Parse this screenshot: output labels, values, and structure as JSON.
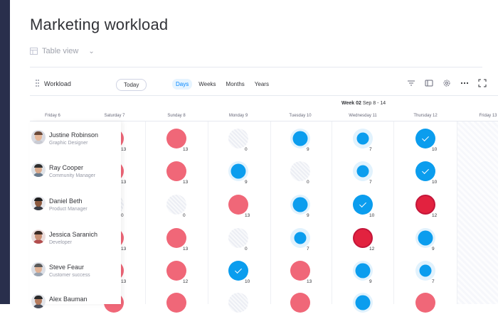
{
  "page": {
    "title": "Marketing workload"
  },
  "view": {
    "label": "Table view",
    "icon": "table-icon"
  },
  "toolbar": {
    "title": "Workload",
    "today": "Today",
    "ranges": [
      "Days",
      "Weeks",
      "Months",
      "Years"
    ],
    "active_range": "Days",
    "tools": [
      "filter-icon",
      "sidebar-icon",
      "settings-icon",
      "more-icon",
      "fullscreen-icon"
    ]
  },
  "week": {
    "label": "Week 02",
    "range": "Sep 8 - 14"
  },
  "days": [
    "Friday 6",
    "Saturday 7",
    "Sunday 8",
    "Monday 9",
    "Tuesday 10",
    "Wednesday 11",
    "Thursday 12",
    "Friday 13"
  ],
  "colors": {
    "overload": "#f06778",
    "critical": "#e2223f",
    "capacity": "#0b9dee",
    "halo": "#e1f2fd",
    "sidebar": "#292f4c"
  },
  "people": [
    {
      "name": "Justine Robinson",
      "role": "Graphic Designer",
      "cells": [
        {
          "status": "red",
          "value": "13"
        },
        {
          "status": "red",
          "value": "13"
        },
        {
          "status": "empty",
          "value": "0"
        },
        {
          "status": "blue",
          "level": 0.75,
          "value": "9"
        },
        {
          "status": "blue",
          "level": 0.6,
          "value": "7"
        },
        {
          "status": "check",
          "value": "10"
        }
      ]
    },
    {
      "name": "Ray Cooper",
      "role": "Community Manager",
      "cells": [
        {
          "status": "red",
          "value": "13"
        },
        {
          "status": "red",
          "value": "13"
        },
        {
          "status": "blue",
          "level": 0.75,
          "value": "9"
        },
        {
          "status": "empty",
          "value": "0"
        },
        {
          "status": "blue",
          "level": 0.6,
          "value": "7"
        },
        {
          "status": "check",
          "value": "10"
        }
      ]
    },
    {
      "name": "Daniel Beth",
      "role": "Product Manager",
      "cells": [
        {
          "status": "empty",
          "value": "0"
        },
        {
          "status": "empty",
          "value": "0"
        },
        {
          "status": "red",
          "value": "13"
        },
        {
          "status": "blue",
          "level": 0.75,
          "value": "9"
        },
        {
          "status": "check",
          "value": "10"
        },
        {
          "status": "critical",
          "value": "12"
        }
      ]
    },
    {
      "name": "Jessica Saranich",
      "role": "Developer",
      "cells": [
        {
          "status": "red",
          "value": "13"
        },
        {
          "status": "red",
          "value": "13"
        },
        {
          "status": "empty",
          "value": "0"
        },
        {
          "status": "blue",
          "level": 0.6,
          "value": "7"
        },
        {
          "status": "critical",
          "value": "12"
        },
        {
          "status": "blue",
          "level": 0.75,
          "value": "9"
        }
      ]
    },
    {
      "name": "Steve Feaur",
      "role": "Customer success",
      "cells": [
        {
          "status": "red",
          "value": "13"
        },
        {
          "status": "red",
          "value": "12"
        },
        {
          "status": "check",
          "value": "10"
        },
        {
          "status": "red",
          "value": "13"
        },
        {
          "status": "blue",
          "level": 0.75,
          "value": "9"
        },
        {
          "status": "blue",
          "level": 0.6,
          "value": "7"
        }
      ]
    },
    {
      "name": "Alex Bauman",
      "role": "",
      "cells": [
        {
          "status": "red",
          "value": ""
        },
        {
          "status": "red",
          "value": ""
        },
        {
          "status": "empty",
          "value": ""
        },
        {
          "status": "red",
          "value": ""
        },
        {
          "status": "blue",
          "level": 0.75,
          "value": ""
        },
        {
          "status": "red",
          "value": ""
        }
      ]
    }
  ]
}
